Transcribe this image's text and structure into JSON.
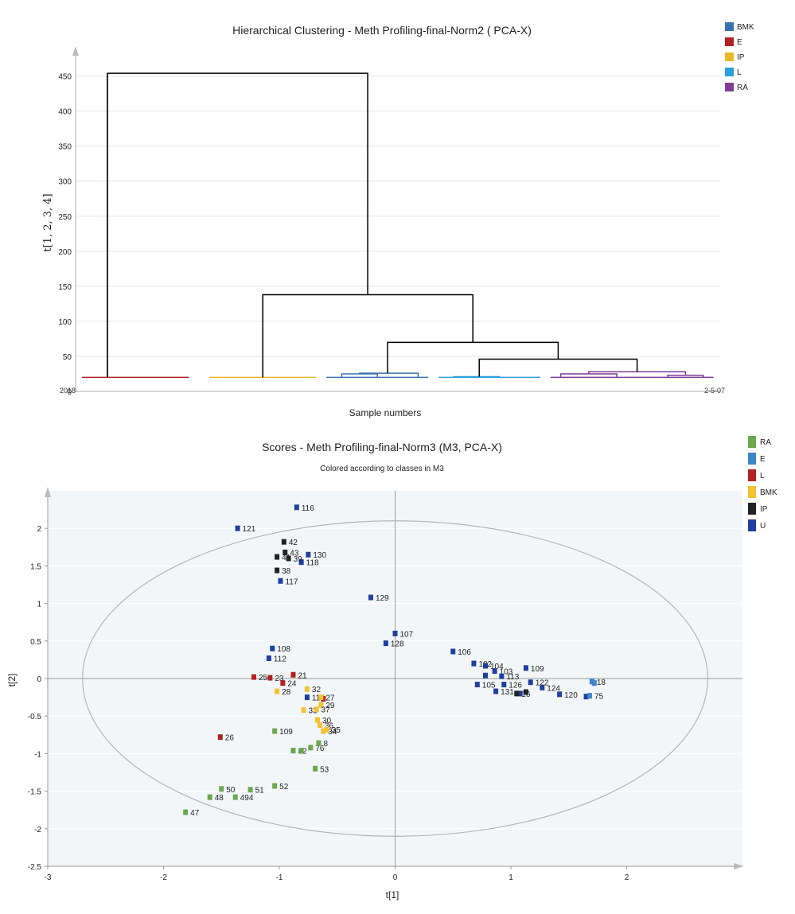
{
  "chart_data": [
    {
      "type": "dendrogram",
      "title": "Hierarchical Clustering - Meth Profiling-final-Norm2 ( PCA-X)",
      "xlabel": "Sample numbers",
      "ylabel": "t[1, 2, 3, 4]",
      "ylim": [
        0,
        470
      ],
      "yticks": [
        0,
        50,
        100,
        150,
        200,
        250,
        300,
        350,
        400,
        450
      ],
      "leaf_label_first": "2018",
      "leaf_label_last": "2-5-07",
      "legend": [
        {
          "name": "BMK",
          "color": "#3a72b0"
        },
        {
          "name": "E",
          "color": "#b22222"
        },
        {
          "name": "IP",
          "color": "#e8b923"
        },
        {
          "name": "L",
          "color": "#2d9fdb"
        },
        {
          "name": "RA",
          "color": "#7e3a96"
        }
      ],
      "leaf_groups": [
        {
          "group": "E",
          "color": "#b22222",
          "x0": 0,
          "x1": 21,
          "height": 20
        },
        {
          "group": "IP",
          "color": "#e8b923",
          "x0": 25,
          "x1": 46,
          "height": 20
        },
        {
          "group": "BMK",
          "color": "#3a72b0",
          "x0": 48,
          "x1": 68,
          "height": 20
        },
        {
          "group": "L",
          "color": "#2d9fdb",
          "x0": 70,
          "x1": 90,
          "height": 20
        },
        {
          "group": "RA",
          "color": "#7e3a96",
          "x0": 92,
          "x1": 124,
          "height": 20
        }
      ],
      "merges": [
        {
          "color": "#3a72b0",
          "left": [
            51,
            20
          ],
          "right": [
            58,
            20
          ],
          "height": 25
        },
        {
          "color": "#3a72b0",
          "left": [
            54.5,
            25
          ],
          "right": [
            66,
            20
          ],
          "height": 26
        },
        {
          "color": "#2d9fdb",
          "left": [
            73,
            20
          ],
          "right": [
            82,
            20
          ],
          "height": 21
        },
        {
          "color": "#7e3a96",
          "left": [
            94,
            20
          ],
          "right": [
            105,
            20
          ],
          "height": 25
        },
        {
          "color": "#7e3a96",
          "left": [
            115,
            20
          ],
          "right": [
            122,
            20
          ],
          "height": 23
        },
        {
          "color": "#7e3a96",
          "left": [
            99.5,
            25
          ],
          "right": [
            118.5,
            23
          ],
          "height": 28
        },
        {
          "color": "#000000",
          "left": [
            78,
            21
          ],
          "right": [
            109,
            28
          ],
          "height": 46
        },
        {
          "color": "#000000",
          "left": [
            60,
            26
          ],
          "right": [
            93.5,
            46
          ],
          "height": 70
        },
        {
          "color": "#000000",
          "left": [
            35.5,
            20
          ],
          "right": [
            76.75,
            70
          ],
          "height": 138
        },
        {
          "color": "#000000",
          "left": [
            5,
            20
          ],
          "right": [
            56.1,
            138
          ],
          "height": 454
        }
      ],
      "group_stems": [
        {
          "color": "#b22222",
          "x": 5,
          "from": 20,
          "to": 454
        },
        {
          "color": "#e8b923",
          "x": 35.5,
          "from": 20,
          "to": 138
        }
      ]
    },
    {
      "type": "scatter",
      "title": "Scores - Meth Profiling-final-Norm3 (M3, PCA-X)",
      "subtitle": "Colored according to classes in M3",
      "xlabel": "t[1]",
      "ylabel": "t[2]",
      "xlim": [
        -3,
        3
      ],
      "ylim": [
        -2.5,
        2.5
      ],
      "xticks": [
        -3,
        -2,
        -1,
        0,
        1,
        2
      ],
      "yticks": [
        -2.5,
        -2,
        -1.5,
        -1,
        -0.5,
        0,
        0.5,
        1,
        1.5,
        2
      ],
      "ellipse": {
        "rx": 2.7,
        "ry": 2.1
      },
      "legend": [
        {
          "name": "RA",
          "color": "#6aa84f"
        },
        {
          "name": "E",
          "color": "#3d85c6"
        },
        {
          "name": "L",
          "color": "#b22222"
        },
        {
          "name": "BMK",
          "color": "#f1c232"
        },
        {
          "name": "IP",
          "color": "#222222"
        },
        {
          "name": "U",
          "color": "#1f3fa0"
        }
      ],
      "series": [
        {
          "name": "U",
          "color": "#1f3fa0",
          "points": [
            {
              "x": -0.85,
              "y": 2.28,
              "label": "116"
            },
            {
              "x": -1.36,
              "y": 2.0,
              "label": "121"
            },
            {
              "x": -0.75,
              "y": 1.65,
              "label": "130"
            },
            {
              "x": -0.81,
              "y": 1.55,
              "label": "118"
            },
            {
              "x": -0.99,
              "y": 1.3,
              "label": "117"
            },
            {
              "x": -0.21,
              "y": 1.08,
              "label": "129"
            },
            {
              "x": 0.0,
              "y": 0.6,
              "label": "107"
            },
            {
              "x": -0.08,
              "y": 0.47,
              "label": "128"
            },
            {
              "x": -1.06,
              "y": 0.4,
              "label": "108"
            },
            {
              "x": -1.09,
              "y": 0.27,
              "label": "112"
            },
            {
              "x": 0.5,
              "y": 0.36,
              "label": "106"
            },
            {
              "x": 0.68,
              "y": 0.2,
              "label": "102"
            },
            {
              "x": 0.78,
              "y": 0.17,
              "label": "104"
            },
            {
              "x": 1.13,
              "y": 0.14,
              "label": "109"
            },
            {
              "x": 0.86,
              "y": 0.1,
              "label": "103"
            },
            {
              "x": 0.92,
              "y": 0.03,
              "label": "113"
            },
            {
              "x": 0.78,
              "y": 0.04,
              "label": ""
            },
            {
              "x": 0.71,
              "y": -0.08,
              "label": "105"
            },
            {
              "x": 0.87,
              "y": -0.17,
              "label": "131"
            },
            {
              "x": 0.94,
              "y": -0.08,
              "label": "126"
            },
            {
              "x": 1.17,
              "y": -0.05,
              "label": "122"
            },
            {
              "x": 1.27,
              "y": -0.12,
              "label": "124"
            },
            {
              "x": 1.42,
              "y": -0.21,
              "label": "120"
            },
            {
              "x": 1.08,
              "y": -0.2,
              "label": ""
            },
            {
              "x": 1.65,
              "y": -0.24,
              "label": ""
            },
            {
              "x": -0.76,
              "y": -0.25,
              "label": "115"
            }
          ]
        },
        {
          "name": "IP",
          "color": "#222222",
          "points": [
            {
              "x": -0.96,
              "y": 1.82,
              "label": "42"
            },
            {
              "x": -0.95,
              "y": 1.68,
              "label": "43"
            },
            {
              "x": -1.02,
              "y": 1.62,
              "label": "41"
            },
            {
              "x": -0.92,
              "y": 1.6,
              "label": "39"
            },
            {
              "x": -1.02,
              "y": 1.44,
              "label": "38"
            },
            {
              "x": 1.05,
              "y": -0.2,
              "label": "16"
            },
            {
              "x": 1.13,
              "y": -0.18,
              "label": ""
            }
          ]
        },
        {
          "name": "E",
          "color": "#3d85c6",
          "points": [
            {
              "x": 1.7,
              "y": -0.04,
              "label": "18"
            },
            {
              "x": 1.72,
              "y": -0.06,
              "label": ""
            },
            {
              "x": 1.68,
              "y": -0.23,
              "label": "75"
            }
          ]
        },
        {
          "name": "L",
          "color": "#b22222",
          "points": [
            {
              "x": -1.22,
              "y": 0.02,
              "label": "25"
            },
            {
              "x": -1.08,
              "y": 0.01,
              "label": "23"
            },
            {
              "x": -0.88,
              "y": 0.05,
              "label": "21"
            },
            {
              "x": -0.97,
              "y": -0.06,
              "label": "24"
            },
            {
              "x": -1.51,
              "y": -0.78,
              "label": "26"
            },
            {
              "x": -0.62,
              "y": -0.27,
              "label": ""
            }
          ]
        },
        {
          "name": "BMK",
          "color": "#f1c232",
          "points": [
            {
              "x": -1.02,
              "y": -0.17,
              "label": "28"
            },
            {
              "x": -0.76,
              "y": -0.14,
              "label": "32"
            },
            {
              "x": -0.64,
              "y": -0.25,
              "label": "27"
            },
            {
              "x": -0.64,
              "y": -0.35,
              "label": "29"
            },
            {
              "x": -0.79,
              "y": -0.42,
              "label": "33"
            },
            {
              "x": -0.68,
              "y": -0.41,
              "label": "37"
            },
            {
              "x": -0.67,
              "y": -0.55,
              "label": "30"
            },
            {
              "x": -0.65,
              "y": -0.62,
              "label": "36"
            },
            {
              "x": -0.62,
              "y": -0.7,
              "label": "34"
            },
            {
              "x": -0.59,
              "y": -0.68,
              "label": "35"
            }
          ]
        },
        {
          "name": "RA",
          "color": "#6aa84f",
          "points": [
            {
              "x": -1.04,
              "y": -0.7,
              "label": "109"
            },
            {
              "x": -0.88,
              "y": -0.96,
              "label": "82"
            },
            {
              "x": -0.81,
              "y": -0.96,
              "label": ""
            },
            {
              "x": -0.73,
              "y": -0.92,
              "label": "76"
            },
            {
              "x": -0.66,
              "y": -0.86,
              "label": "8"
            },
            {
              "x": -0.69,
              "y": -1.2,
              "label": "53"
            },
            {
              "x": -1.04,
              "y": -1.43,
              "label": "52"
            },
            {
              "x": -1.25,
              "y": -1.48,
              "label": "51"
            },
            {
              "x": -1.5,
              "y": -1.47,
              "label": "50"
            },
            {
              "x": -1.38,
              "y": -1.58,
              "label": "494"
            },
            {
              "x": -1.6,
              "y": -1.58,
              "label": "48"
            },
            {
              "x": -1.81,
              "y": -1.78,
              "label": "47"
            }
          ]
        }
      ]
    }
  ]
}
